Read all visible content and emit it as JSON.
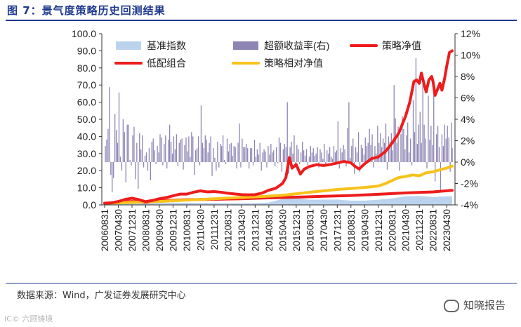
{
  "figure": {
    "title": "图 7：景气度策略历史回测结果",
    "source": "数据来源：Wind，广发证券发展研究中心",
    "watermark_left": "IC© 六顾铸境",
    "watermark_right": "知晓报告"
  },
  "colors": {
    "title": "#1f3a8f",
    "benchmark": "#bcd3ee",
    "excess": "#8e85b5",
    "strategy": "#ee1c1c",
    "low_combo": "#ee1c1c",
    "relative": "#f7c21a"
  },
  "chart_data": {
    "type": "combo",
    "title": "",
    "legend": [
      {
        "key": "benchmark",
        "label": "基准指数",
        "kind": "area"
      },
      {
        "key": "excess",
        "label": "超额收益率(右)",
        "kind": "bar"
      },
      {
        "key": "strategy",
        "label": "策略净值",
        "kind": "line"
      },
      {
        "key": "low_combo",
        "label": "低配组合",
        "kind": "line"
      },
      {
        "key": "relative",
        "label": "策略相对净值",
        "kind": "line"
      }
    ],
    "legend_position": "top-left",
    "y_left": {
      "min": 0,
      "max": 100,
      "ticks": [
        "0.0",
        "10.0",
        "20.0",
        "30.0",
        "40.0",
        "50.0",
        "60.0",
        "70.0",
        "80.0",
        "90.0",
        "100.0"
      ]
    },
    "y_right": {
      "min": -4,
      "max": 12,
      "ticks": [
        "-4%",
        "-2%",
        "0%",
        "2%",
        "4%",
        "6%",
        "8%",
        "10%",
        "12%"
      ]
    },
    "x_ticks": [
      "20060831",
      "20070430",
      "20071231",
      "20080831",
      "20090430",
      "20091231",
      "20100831",
      "20110430",
      "20111231",
      "20120831",
      "20130430",
      "20131231",
      "20140831",
      "20150430",
      "20151231",
      "20160831",
      "20170430",
      "20171231",
      "20180831",
      "20190430",
      "20191231",
      "20200831",
      "20210430",
      "20211231",
      "20220831",
      "20230430"
    ],
    "strategy_line": [
      [
        0,
        1
      ],
      [
        0.5,
        1.2
      ],
      [
        1,
        2
      ],
      [
        1.5,
        3.2
      ],
      [
        2,
        3.9
      ],
      [
        2.5,
        3.1
      ],
      [
        3,
        1.9
      ],
      [
        3.5,
        2.6
      ],
      [
        4,
        3.6
      ],
      [
        4.5,
        4.3
      ],
      [
        5,
        5.3
      ],
      [
        5.5,
        6.3
      ],
      [
        6,
        6.3
      ],
      [
        6.5,
        7.4
      ],
      [
        7,
        8.2
      ],
      [
        7.5,
        7.6
      ],
      [
        8,
        7.8
      ],
      [
        8.5,
        7.4
      ],
      [
        9,
        6.8
      ],
      [
        9.5,
        6.4
      ],
      [
        10,
        6
      ],
      [
        10.5,
        5.9
      ],
      [
        11,
        6
      ],
      [
        11.5,
        6.9
      ],
      [
        12,
        8.6
      ],
      [
        12.5,
        9.7
      ],
      [
        13,
        12.5
      ],
      [
        13.25,
        16
      ],
      [
        13.5,
        27.7
      ],
      [
        13.7,
        21.5
      ],
      [
        14,
        23.6
      ],
      [
        14.3,
        18
      ],
      [
        14.6,
        21
      ],
      [
        15,
        22.5
      ],
      [
        15.5,
        23.5
      ],
      [
        16,
        23
      ],
      [
        16.5,
        23.6
      ],
      [
        17,
        24.5
      ],
      [
        17.5,
        25.4
      ],
      [
        18,
        24.6
      ],
      [
        18.3,
        22.5
      ],
      [
        18.6,
        21
      ],
      [
        19,
        24
      ],
      [
        19.5,
        27
      ],
      [
        20,
        28
      ],
      [
        20.5,
        31
      ],
      [
        21,
        36
      ],
      [
        21.5,
        42
      ],
      [
        22,
        52
      ],
      [
        22.3,
        60
      ],
      [
        22.6,
        72
      ],
      [
        22.8,
        73
      ],
      [
        23,
        71
      ],
      [
        23.15,
        77
      ],
      [
        23.3,
        72
      ],
      [
        23.5,
        66
      ],
      [
        23.7,
        73
      ],
      [
        23.9,
        75
      ],
      [
        24,
        72
      ],
      [
        24.15,
        64
      ],
      [
        24.35,
        68
      ],
      [
        24.5,
        71
      ],
      [
        24.65,
        67
      ],
      [
        24.85,
        74
      ],
      [
        25,
        81
      ],
      [
        25.2,
        89
      ],
      [
        25.4,
        90
      ]
    ],
    "low_combo_line": [
      [
        0,
        1
      ],
      [
        2,
        2
      ],
      [
        3,
        1.5
      ],
      [
        4,
        2.4
      ],
      [
        6,
        3
      ],
      [
        8,
        3.3
      ],
      [
        10,
        3.6
      ],
      [
        12,
        4.1
      ],
      [
        14,
        4.5
      ],
      [
        16,
        5
      ],
      [
        18,
        5.5
      ],
      [
        20,
        6.2
      ],
      [
        22,
        7
      ],
      [
        24,
        7.6
      ],
      [
        25.4,
        8.5
      ]
    ],
    "relative_line": [
      [
        0,
        1
      ],
      [
        1,
        1.2
      ],
      [
        2,
        1.5
      ],
      [
        3,
        1.8
      ],
      [
        4,
        2
      ],
      [
        5,
        2.4
      ],
      [
        6,
        2.8
      ],
      [
        7,
        3.2
      ],
      [
        8,
        3.6
      ],
      [
        9,
        4
      ],
      [
        10,
        4.3
      ],
      [
        11,
        4.7
      ],
      [
        12,
        5.1
      ],
      [
        13,
        5.6
      ],
      [
        14,
        6.5
      ],
      [
        15,
        7.4
      ],
      [
        16,
        8.2
      ],
      [
        17,
        9
      ],
      [
        18,
        9.6
      ],
      [
        19,
        10.2
      ],
      [
        20,
        11
      ],
      [
        20.5,
        12.4
      ],
      [
        21,
        14.2
      ],
      [
        21.5,
        16
      ],
      [
        22,
        16.6
      ],
      [
        22.5,
        17.5
      ],
      [
        23,
        17
      ],
      [
        23.5,
        18.8
      ],
      [
        24,
        19.3
      ],
      [
        24.5,
        20.5
      ],
      [
        25,
        21.5
      ],
      [
        25.4,
        22.7
      ]
    ],
    "benchmark_area": [
      [
        0,
        0.5
      ],
      [
        2,
        1.5
      ],
      [
        3,
        1
      ],
      [
        5,
        1.3
      ],
      [
        7,
        1.2
      ],
      [
        9,
        1
      ],
      [
        11,
        1
      ],
      [
        12,
        1.4
      ],
      [
        13,
        3.5
      ],
      [
        13.5,
        7
      ],
      [
        14,
        4
      ],
      [
        15,
        3
      ],
      [
        17,
        3.1
      ],
      [
        18,
        2.5
      ],
      [
        19,
        2.5
      ],
      [
        20,
        3
      ],
      [
        21,
        3.8
      ],
      [
        22,
        5
      ],
      [
        23,
        5.2
      ],
      [
        24,
        4.6
      ],
      [
        25,
        5
      ],
      [
        25.4,
        5
      ]
    ],
    "excess_bars": [
      [
        0.05,
        1.5
      ],
      [
        0.15,
        2.1
      ],
      [
        0.25,
        3.1
      ],
      [
        0.35,
        7
      ],
      [
        0.45,
        -1.2
      ],
      [
        0.55,
        -2.8
      ],
      [
        0.65,
        -1.5
      ],
      [
        0.75,
        4.5
      ],
      [
        0.85,
        3
      ],
      [
        0.95,
        1.8
      ],
      [
        1.05,
        6.5
      ],
      [
        1.15,
        0.5
      ],
      [
        1.25,
        -0.8
      ],
      [
        1.35,
        4
      ],
      [
        1.45,
        2.8
      ],
      [
        1.55,
        -1.9
      ],
      [
        1.65,
        3.5
      ],
      [
        1.75,
        3.5
      ],
      [
        1.85,
        0.2
      ],
      [
        1.95,
        -0.3
      ],
      [
        2.05,
        2.5
      ],
      [
        2.15,
        3.3
      ],
      [
        2.25,
        -1.6
      ],
      [
        2.35,
        1.8
      ],
      [
        2.45,
        -2.5
      ],
      [
        2.55,
        2.7
      ],
      [
        2.65,
        1.2
      ],
      [
        2.75,
        2.5
      ],
      [
        2.85,
        -0.5
      ],
      [
        2.95,
        0.6
      ],
      [
        3.05,
        0.9
      ],
      [
        3.15,
        -0.8
      ],
      [
        3.25,
        1.3
      ],
      [
        3.35,
        -1.7
      ],
      [
        3.45,
        1.9
      ],
      [
        3.55,
        2.2
      ],
      [
        3.65,
        1.1
      ],
      [
        3.75,
        -0.2
      ],
      [
        3.85,
        1.5
      ],
      [
        3.95,
        0.9
      ],
      [
        4.05,
        2.6
      ],
      [
        4.15,
        2.3
      ],
      [
        4.25,
        -0.3
      ],
      [
        4.35,
        1.7
      ],
      [
        4.45,
        2.5
      ],
      [
        4.55,
        -0.6
      ],
      [
        4.65,
        2.1
      ],
      [
        4.75,
        3.5
      ],
      [
        4.85,
        1.9
      ],
      [
        4.95,
        0.8
      ],
      [
        5.05,
        2.4
      ],
      [
        5.15,
        1.2
      ],
      [
        5.25,
        2.6
      ],
      [
        5.35,
        -0.4
      ],
      [
        5.45,
        1.8
      ],
      [
        5.55,
        2.1
      ],
      [
        5.65,
        2.2
      ],
      [
        5.75,
        -0.7
      ],
      [
        5.85,
        1.6
      ],
      [
        5.95,
        2.3
      ],
      [
        6.05,
        1
      ],
      [
        6.15,
        2.4
      ],
      [
        6.25,
        0.5
      ],
      [
        6.35,
        2.8
      ],
      [
        6.45,
        2.4
      ],
      [
        6.55,
        -1.2
      ],
      [
        6.65,
        1.1
      ],
      [
        6.75,
        1.3
      ],
      [
        6.85,
        2.4
      ],
      [
        6.95,
        -0.3
      ],
      [
        7.05,
        5.3
      ],
      [
        7.15,
        1.8
      ],
      [
        7.25,
        1.3
      ],
      [
        7.35,
        2.5
      ],
      [
        7.45,
        2.1
      ],
      [
        7.55,
        0.9
      ],
      [
        7.65,
        1.8
      ],
      [
        7.75,
        2.4
      ],
      [
        7.85,
        -1.3
      ],
      [
        7.95,
        1.3
      ],
      [
        8.05,
        0.4
      ],
      [
        8.15,
        -0.8
      ],
      [
        8.25,
        1.9
      ],
      [
        8.35,
        -0.5
      ],
      [
        8.45,
        1.7
      ],
      [
        8.55,
        1.5
      ],
      [
        8.65,
        2.5
      ],
      [
        8.75,
        0.2
      ],
      [
        8.85,
        -0.2
      ],
      [
        8.95,
        2.2
      ],
      [
        9.05,
        1
      ],
      [
        9.15,
        1.7
      ],
      [
        9.25,
        1.8
      ],
      [
        9.35,
        0.6
      ],
      [
        9.45,
        1.5
      ],
      [
        9.55,
        1.4
      ],
      [
        9.65,
        -0.6
      ],
      [
        9.75,
        1.8
      ],
      [
        9.85,
        3.6
      ],
      [
        9.95,
        -0.5
      ],
      [
        10.05,
        2.2
      ],
      [
        10.15,
        1.4
      ],
      [
        10.25,
        1.4
      ],
      [
        10.35,
        1.7
      ],
      [
        10.45,
        1.3
      ],
      [
        10.55,
        -0.6
      ],
      [
        10.65,
        1.3
      ],
      [
        10.75,
        1.3
      ],
      [
        10.85,
        -0.3
      ],
      [
        10.95,
        2.1
      ],
      [
        11.05,
        0.5
      ],
      [
        11.15,
        1.2
      ],
      [
        11.25,
        0.7
      ],
      [
        11.35,
        1.8
      ],
      [
        11.45,
        -0.8
      ],
      [
        11.55,
        0.9
      ],
      [
        11.65,
        1.2
      ],
      [
        11.75,
        1
      ],
      [
        11.85,
        -0.5
      ],
      [
        11.95,
        1.5
      ],
      [
        12.05,
        0.7
      ],
      [
        12.15,
        1.7
      ],
      [
        12.25,
        0.9
      ],
      [
        12.35,
        1.1
      ],
      [
        12.45,
        -0.4
      ],
      [
        12.55,
        1.4
      ],
      [
        12.65,
        -0.1
      ],
      [
        12.75,
        2.3
      ],
      [
        12.85,
        1.8
      ],
      [
        12.95,
        -0.9
      ],
      [
        13.05,
        1.2
      ],
      [
        13.15,
        1.7
      ],
      [
        13.25,
        1.4
      ],
      [
        13.35,
        5.6
      ],
      [
        13.45,
        -1.1
      ],
      [
        13.55,
        1.4
      ],
      [
        13.65,
        1.9
      ],
      [
        13.75,
        0.8
      ],
      [
        13.85,
        2.5
      ],
      [
        13.95,
        -0.5
      ],
      [
        14.05,
        1.6
      ],
      [
        14.15,
        1.2
      ],
      [
        14.25,
        -0.2
      ],
      [
        14.35,
        0.9
      ],
      [
        14.45,
        1.9
      ],
      [
        14.55,
        1.1
      ],
      [
        14.65,
        0.6
      ],
      [
        14.75,
        1.2
      ],
      [
        14.85,
        -0.3
      ],
      [
        14.95,
        0.5
      ],
      [
        15.05,
        1.5
      ],
      [
        15.15,
        0.9
      ],
      [
        15.25,
        1.3
      ],
      [
        15.35,
        0.6
      ],
      [
        15.45,
        0.8
      ],
      [
        15.55,
        1.4
      ],
      [
        15.65,
        -0.5
      ],
      [
        15.75,
        1.2
      ],
      [
        15.85,
        0.9
      ],
      [
        15.95,
        0.3
      ],
      [
        16.05,
        1.7
      ],
      [
        16.15,
        -0.4
      ],
      [
        16.25,
        1.1
      ],
      [
        16.35,
        0.8
      ],
      [
        16.45,
        1.4
      ],
      [
        16.55,
        0.5
      ],
      [
        16.65,
        0.3
      ],
      [
        16.75,
        1.5
      ],
      [
        16.85,
        0.9
      ],
      [
        16.95,
        1.1
      ],
      [
        17.05,
        3.8
      ],
      [
        17.15,
        -0.6
      ],
      [
        17.25,
        1.3
      ],
      [
        17.35,
        0.9
      ],
      [
        17.45,
        1.6
      ],
      [
        17.55,
        1.2
      ],
      [
        17.65,
        -0.4
      ],
      [
        17.75,
        3.2
      ],
      [
        17.85,
        5.6
      ],
      [
        17.95,
        0.4
      ],
      [
        18.05,
        1.5
      ],
      [
        18.15,
        2.2
      ],
      [
        18.25,
        -1.1
      ],
      [
        18.35,
        1.4
      ],
      [
        18.45,
        0.9
      ],
      [
        18.55,
        2.8
      ],
      [
        18.65,
        -0.9
      ],
      [
        18.75,
        1.6
      ],
      [
        18.85,
        1.3
      ],
      [
        18.95,
        0.7
      ],
      [
        19.05,
        2.3
      ],
      [
        19.15,
        1.5
      ],
      [
        19.25,
        1.8
      ],
      [
        19.35,
        3.1
      ],
      [
        19.45,
        1.6
      ],
      [
        19.55,
        2.6
      ],
      [
        19.65,
        -0.5
      ],
      [
        19.75,
        1.5
      ],
      [
        19.85,
        0.8
      ],
      [
        19.95,
        3.4
      ],
      [
        20.05,
        1.8
      ],
      [
        20.15,
        2.7
      ],
      [
        20.25,
        1.4
      ],
      [
        20.35,
        2.2
      ],
      [
        20.45,
        1.8
      ],
      [
        20.55,
        3.6
      ],
      [
        20.65,
        -0.7
      ],
      [
        20.75,
        2.4
      ],
      [
        20.85,
        1.9
      ],
      [
        20.95,
        2.7
      ],
      [
        21.05,
        1.1
      ],
      [
        21.15,
        7.2
      ],
      [
        21.25,
        4.1
      ],
      [
        21.35,
        1.8
      ],
      [
        21.45,
        3.3
      ],
      [
        21.55,
        -0.8
      ],
      [
        21.65,
        2.6
      ],
      [
        21.75,
        4.3
      ],
      [
        21.85,
        3.1
      ],
      [
        21.95,
        1.2
      ],
      [
        22.05,
        2.5
      ],
      [
        22.15,
        3.7
      ],
      [
        22.25,
        0.9
      ],
      [
        22.35,
        2.2
      ],
      [
        22.45,
        -0.3
      ],
      [
        22.55,
        5.8
      ],
      [
        22.65,
        2.8
      ],
      [
        22.75,
        9.7
      ],
      [
        22.85,
        1.7
      ],
      [
        22.95,
        3.5
      ],
      [
        23.05,
        4.7
      ],
      [
        23.15,
        1.8
      ],
      [
        23.25,
        7.3
      ],
      [
        23.35,
        3.5
      ],
      [
        23.45,
        2.2
      ],
      [
        23.55,
        -0.6
      ],
      [
        23.65,
        6.2
      ],
      [
        23.75,
        2.1
      ],
      [
        23.85,
        3.4
      ],
      [
        23.95,
        1.6
      ],
      [
        24.05,
        7.2
      ],
      [
        24.15,
        -1.8
      ],
      [
        24.25,
        2.6
      ],
      [
        24.35,
        3.4
      ],
      [
        24.45,
        1.4
      ],
      [
        24.55,
        -2.6
      ],
      [
        24.65,
        2.6
      ],
      [
        24.75,
        1.5
      ],
      [
        24.85,
        3.5
      ],
      [
        24.95,
        2.2
      ],
      [
        25.05,
        3.4
      ],
      [
        25.15,
        2.3
      ],
      [
        25.25,
        -0.9
      ],
      [
        25.35,
        3.7
      ],
      [
        25.4,
        1.3
      ]
    ]
  }
}
